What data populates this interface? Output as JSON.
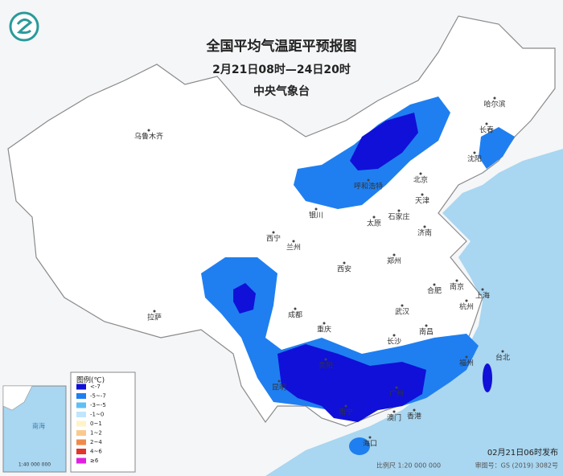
{
  "header": {
    "title": "全国平均气温距平预报图",
    "period": "2月21日08时—24日20时",
    "agency": "中央气象台"
  },
  "cities": [
    {
      "label": "乌鲁木齐"
    },
    {
      "label": "哈尔滨"
    },
    {
      "label": "长春"
    },
    {
      "label": "沈阳"
    },
    {
      "label": "呼和浩特"
    },
    {
      "label": "北京"
    },
    {
      "label": "天津"
    },
    {
      "label": "银川"
    },
    {
      "label": "石家庄"
    },
    {
      "label": "太原"
    },
    {
      "label": "济南"
    },
    {
      "label": "西宁"
    },
    {
      "label": "兰州"
    },
    {
      "label": "郑州"
    },
    {
      "label": "西安"
    },
    {
      "label": "合肥"
    },
    {
      "label": "南京"
    },
    {
      "label": "上海"
    },
    {
      "label": "成都"
    },
    {
      "label": "武汉"
    },
    {
      "label": "杭州"
    },
    {
      "label": "拉萨"
    },
    {
      "label": "重庆"
    },
    {
      "label": "长沙"
    },
    {
      "label": "南昌"
    },
    {
      "label": "福州"
    },
    {
      "label": "台北"
    },
    {
      "label": "贵阳"
    },
    {
      "label": "昆明"
    },
    {
      "label": "南宁"
    },
    {
      "label": "广州"
    },
    {
      "label": "澳门"
    },
    {
      "label": "香港"
    },
    {
      "label": "海口"
    }
  ],
  "legend": {
    "title": "图例(℃)",
    "items": [
      {
        "label": "<-7",
        "color": "#1010d8"
      },
      {
        "label": "-5~-7",
        "color": "#1f7ff0"
      },
      {
        "label": "-3~-5",
        "color": "#5fbff5"
      },
      {
        "label": "-1~0",
        "color": "#bfe6fb"
      },
      {
        "label": "0~1",
        "color": "#fff3c8"
      },
      {
        "label": "1~2",
        "color": "#fbc98f"
      },
      {
        "label": "2~4",
        "color": "#f08a4b"
      },
      {
        "label": "4~6",
        "color": "#e0362c"
      },
      {
        "label": "≥6",
        "color": "#e020e0"
      }
    ]
  },
  "inset": {
    "sea_label": "南海",
    "scale": "1:40 000 000"
  },
  "footer": {
    "issued": "02月21日06时发布",
    "scale": "比例尺 1:20 000 000",
    "map_number": "审图号：GS (2019) 3082号"
  }
}
